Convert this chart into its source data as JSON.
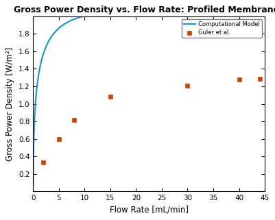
{
  "title": "Gross Power Density vs. Flow Rate: Profiled Membranes",
  "xlabel": "Flow Rate [mL/min]",
  "ylabel": "Gross Power Density [W/m²]",
  "xlim": [
    0,
    45
  ],
  "ylim": [
    0,
    2.0
  ],
  "yticks": [
    0.2,
    0.4,
    0.6,
    0.8,
    1.0,
    1.2,
    1.4,
    1.6,
    1.8
  ],
  "xticks": [
    0,
    5,
    10,
    15,
    20,
    25,
    30,
    35,
    40,
    45
  ],
  "curve_color": "#2196d0",
  "scatter_color": "#cc4400",
  "scatter_x": [
    2,
    5,
    8,
    15,
    30,
    40,
    44
  ],
  "scatter_y": [
    0.33,
    0.6,
    0.82,
    1.08,
    1.21,
    1.28,
    1.29
  ],
  "curve_A": 2.1,
  "curve_k": 0.28,
  "legend_curve": "Computational Model",
  "legend_scatter": "Guler et al.",
  "background_color": "#ffffff",
  "title_fontsize": 9,
  "label_fontsize": 8.5,
  "tick_fontsize": 7.5
}
